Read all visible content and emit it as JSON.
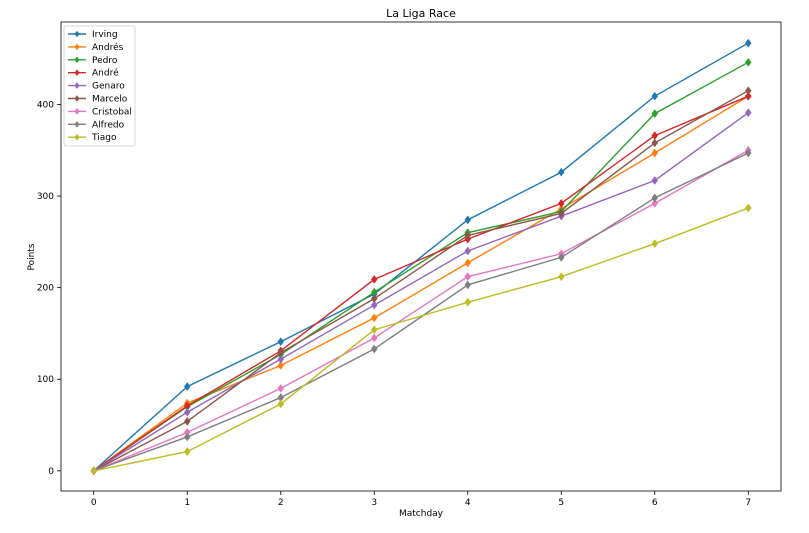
{
  "chart_data": {
    "type": "line",
    "title": "La Liga Race",
    "xlabel": "Matchday",
    "ylabel": "Points",
    "x": [
      0,
      1,
      2,
      3,
      4,
      5,
      6,
      7
    ],
    "xlim": [
      -0.35,
      7.35
    ],
    "ylim": [
      -22,
      490
    ],
    "xticks": [
      0,
      1,
      2,
      3,
      4,
      5,
      6,
      7
    ],
    "yticks": [
      0,
      100,
      200,
      300,
      400
    ],
    "legend_position": "top-left",
    "grid": false,
    "marker": "diamond",
    "series": [
      {
        "name": "Irving",
        "color": "#1f77b4",
        "values": [
          0,
          92,
          141,
          193,
          274,
          326,
          409,
          467
        ]
      },
      {
        "name": "Andrés",
        "color": "#ff7f0e",
        "values": [
          0,
          74,
          115,
          167,
          227,
          286,
          347,
          409
        ]
      },
      {
        "name": "Pedro",
        "color": "#2ca02c",
        "values": [
          0,
          70,
          127,
          195,
          260,
          283,
          390,
          446
        ]
      },
      {
        "name": "André",
        "color": "#d62728",
        "values": [
          0,
          71,
          131,
          209,
          253,
          292,
          366,
          409
        ]
      },
      {
        "name": "Genaro",
        "color": "#9467bd",
        "values": [
          0,
          64,
          122,
          181,
          240,
          278,
          317,
          391
        ]
      },
      {
        "name": "Marcelo",
        "color": "#8c564b",
        "values": [
          0,
          54,
          129,
          188,
          257,
          281,
          358,
          415
        ]
      },
      {
        "name": "Cristobal",
        "color": "#e377c2",
        "values": [
          0,
          42,
          90,
          145,
          212,
          237,
          292,
          350
        ]
      },
      {
        "name": "Alfredo",
        "color": "#7f7f7f",
        "values": [
          0,
          37,
          80,
          133,
          203,
          233,
          298,
          347
        ]
      },
      {
        "name": "Tiago",
        "color": "#bcbd22",
        "values": [
          0,
          21,
          73,
          154,
          184,
          212,
          248,
          287
        ]
      }
    ]
  }
}
